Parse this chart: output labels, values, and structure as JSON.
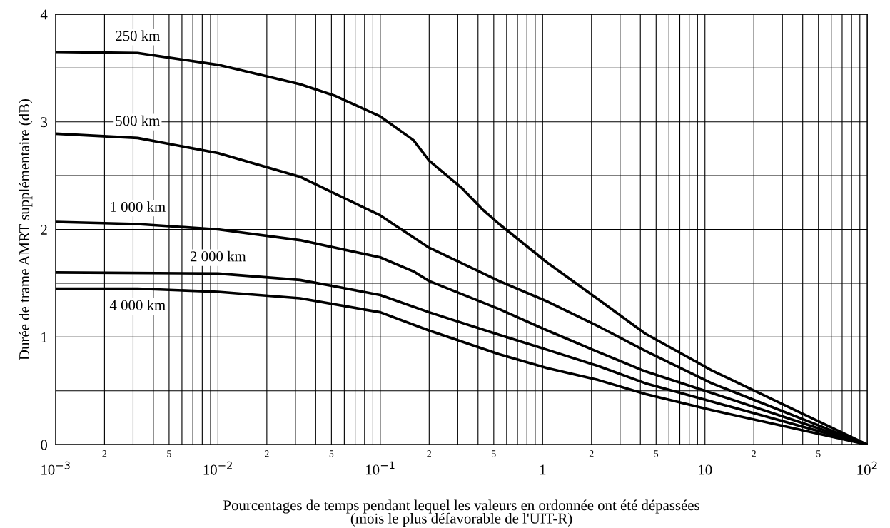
{
  "chart_data": {
    "type": "line",
    "xlabel": "Pourcentages de temps pendant lequel les valeurs en ordonnée ont été dépassées\n(mois le plus défavorable de l'UIT-R)",
    "ylabel": "Durée de trame AMRT supplémentaire (dB)",
    "log": "x",
    "grid": true,
    "legend": false,
    "marker": "none",
    "line_style": "solid",
    "xlim": [
      0.001,
      100
    ],
    "ylim": [
      0,
      4
    ],
    "annotations": [
      "2",
      "5",
      "2",
      "5",
      "2",
      "5",
      "2",
      "5",
      "2",
      "5"
    ],
    "xticks": [
      {
        "value": 0.001,
        "label": "10$^{−3}$"
      },
      {
        "value": 0.002,
        "label": null
      },
      {
        "value": 0.003,
        "label": null
      },
      {
        "value": 0.004,
        "label": null
      },
      {
        "value": 0.005,
        "label": null
      },
      {
        "value": 0.006,
        "label": null
      },
      {
        "value": 0.007,
        "label": null
      },
      {
        "value": 0.008,
        "label": null
      },
      {
        "value": 0.009,
        "label": null
      },
      {
        "value": 0.01,
        "label": "10$^{−2}$"
      },
      {
        "value": 0.02,
        "label": null
      },
      {
        "value": 0.03,
        "label": null
      },
      {
        "value": 0.04,
        "label": null
      },
      {
        "value": 0.05,
        "label": null
      },
      {
        "value": 0.06,
        "label": null
      },
      {
        "value": 0.07,
        "label": null
      },
      {
        "value": 0.08,
        "label": null
      },
      {
        "value": 0.09,
        "label": null
      },
      {
        "value": 0.1,
        "label": "10$^{−1}$"
      },
      {
        "value": 0.2,
        "label": null
      },
      {
        "value": 0.3,
        "label": null
      },
      {
        "value": 0.4,
        "label": null
      },
      {
        "value": 0.5,
        "label": null
      },
      {
        "value": 0.6,
        "label": null
      },
      {
        "value": 0.7,
        "label": null
      },
      {
        "value": 0.8,
        "label": null
      },
      {
        "value": 0.9,
        "label": null
      },
      {
        "value": 1,
        "label": "1"
      },
      {
        "value": 2,
        "label": null
      },
      {
        "value": 3,
        "label": null
      },
      {
        "value": 4,
        "label": null
      },
      {
        "value": 5,
        "label": null
      },
      {
        "value": 6,
        "label": null
      },
      {
        "value": 7,
        "label": null
      },
      {
        "value": 8,
        "label": null
      },
      {
        "value": 9,
        "label": null
      },
      {
        "value": 10,
        "label": "10"
      },
      {
        "value": 20,
        "label": null
      },
      {
        "value": 30,
        "label": null
      },
      {
        "value": 40,
        "label": null
      },
      {
        "value": 50,
        "label": null
      },
      {
        "value": 60,
        "label": null
      },
      {
        "value": 70,
        "label": null
      },
      {
        "value": 80,
        "label": null
      },
      {
        "value": 90,
        "label": null
      },
      {
        "value": 100,
        "label": "10$^{2}$"
      }
    ],
    "yticks": [
      0,
      {
        "value": 0.5,
        "label": null
      },
      1,
      {
        "value": 1.5,
        "label": null
      },
      2,
      {
        "value": 2.5,
        "label": null
      },
      3,
      {
        "value": 3.5,
        "label": null
      },
      4
    ],
    "series": [
      {
        "name": "250 km",
        "color": "#000000",
        "x": [
          0.001,
          0.0032,
          0.01,
          0.032,
          0.053,
          0.1,
          0.16,
          0.2,
          0.32,
          0.43,
          0.54,
          1.07,
          2.2,
          4.3,
          11,
          100
        ],
        "values": [
          3.65,
          3.64,
          3.53,
          3.35,
          3.24,
          3.05,
          2.83,
          2.64,
          2.38,
          2.18,
          2.05,
          1.69,
          1.35,
          1.03,
          0.69,
          0
        ]
      },
      {
        "name": "500 km",
        "color": "#000000",
        "x": [
          0.001,
          0.0032,
          0.01,
          0.032,
          0.1,
          0.2,
          0.54,
          1.07,
          2.2,
          4.3,
          11,
          100
        ],
        "values": [
          2.89,
          2.85,
          2.71,
          2.49,
          2.13,
          1.83,
          1.52,
          1.33,
          1.1,
          0.87,
          0.57,
          0
        ]
      },
      {
        "name": "1 000 km",
        "color": "#000000",
        "x": [
          0.001,
          0.0032,
          0.01,
          0.032,
          0.1,
          0.16,
          0.2,
          0.54,
          1.07,
          2.2,
          4.3,
          11,
          100
        ],
        "values": [
          2.07,
          2.05,
          2.0,
          1.9,
          1.74,
          1.61,
          1.52,
          1.26,
          1.06,
          0.86,
          0.68,
          0.48,
          0
        ]
      },
      {
        "name": "2 000 km",
        "color": "#000000",
        "x": [
          0.001,
          0.01,
          0.032,
          0.053,
          0.1,
          0.2,
          0.54,
          1.07,
          2.2,
          4.3,
          11,
          100
        ],
        "values": [
          1.6,
          1.59,
          1.53,
          1.47,
          1.39,
          1.23,
          1.02,
          0.88,
          0.73,
          0.57,
          0.4,
          0
        ]
      },
      {
        "name": "4 000 km",
        "color": "#000000",
        "x": [
          0.001,
          0.0032,
          0.01,
          0.032,
          0.1,
          0.2,
          0.54,
          1.07,
          2.2,
          4.3,
          11,
          100
        ],
        "values": [
          1.45,
          1.45,
          1.42,
          1.36,
          1.23,
          1.06,
          0.84,
          0.71,
          0.6,
          0.47,
          0.32,
          0
        ]
      }
    ]
  }
}
